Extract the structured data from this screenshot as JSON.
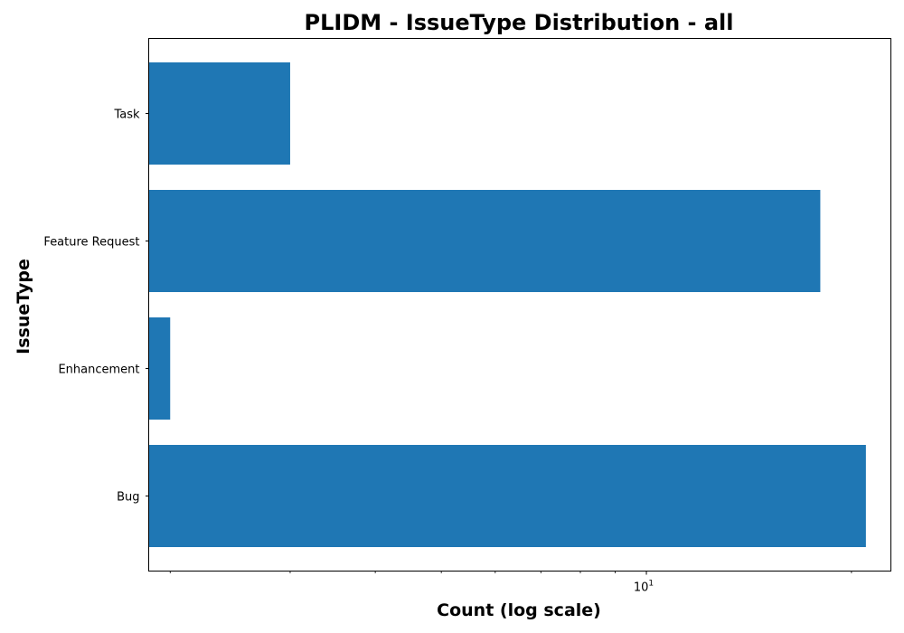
{
  "chart_data": {
    "type": "bar",
    "orientation": "horizontal",
    "title": "PLIDM - IssueType Distribution - all",
    "xlabel": "Count (log scale)",
    "ylabel": "IssueType",
    "x_scale": "log",
    "xlim": [
      1.86,
      22.85
    ],
    "x_major_ticks": [
      10
    ],
    "x_major_tick_labels": [
      {
        "base": "10",
        "exponent": "1"
      }
    ],
    "x_minor_ticks": [
      2,
      3,
      4,
      5,
      6,
      7,
      8,
      9,
      20
    ],
    "categories": [
      "Bug",
      "Enhancement",
      "Feature Request",
      "Task"
    ],
    "values": [
      21,
      2,
      18,
      3
    ],
    "bar_color": "#1f77b4",
    "grid": false,
    "legend": "none"
  }
}
